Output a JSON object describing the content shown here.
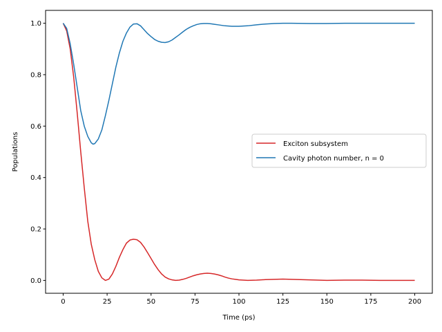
{
  "chart_data": {
    "type": "line",
    "title": "",
    "xlabel": "Time (ps)",
    "ylabel": "Populations",
    "xlim": [
      -10,
      210
    ],
    "ylim": [
      -0.05,
      1.05
    ],
    "xticks": [
      0,
      25,
      50,
      75,
      100,
      125,
      150,
      175,
      200
    ],
    "yticks": [
      0.0,
      0.2,
      0.4,
      0.6,
      0.8,
      1.0
    ],
    "xtick_labels": [
      "0",
      "25",
      "50",
      "75",
      "100",
      "125",
      "150",
      "175",
      "200"
    ],
    "ytick_labels": [
      "0.0",
      "0.2",
      "0.4",
      "0.6",
      "0.8",
      "1.0"
    ],
    "grid": false,
    "legend_position": "center-right",
    "series": [
      {
        "name": "Exciton subsystem",
        "color": "#d62728",
        "points": [
          [
            0,
            1.0
          ],
          [
            2,
            0.97
          ],
          [
            4,
            0.9
          ],
          [
            6,
            0.79
          ],
          [
            8,
            0.65
          ],
          [
            10,
            0.5
          ],
          [
            12,
            0.36
          ],
          [
            14,
            0.23
          ],
          [
            16,
            0.14
          ],
          [
            18,
            0.08
          ],
          [
            20,
            0.035
          ],
          [
            22,
            0.01
          ],
          [
            24,
            0.0
          ],
          [
            26,
            0.005
          ],
          [
            28,
            0.025
          ],
          [
            30,
            0.055
          ],
          [
            32,
            0.09
          ],
          [
            34,
            0.12
          ],
          [
            36,
            0.145
          ],
          [
            38,
            0.157
          ],
          [
            40,
            0.16
          ],
          [
            42,
            0.158
          ],
          [
            44,
            0.148
          ],
          [
            46,
            0.13
          ],
          [
            48,
            0.108
          ],
          [
            50,
            0.085
          ],
          [
            52,
            0.062
          ],
          [
            54,
            0.042
          ],
          [
            56,
            0.025
          ],
          [
            58,
            0.013
          ],
          [
            60,
            0.006
          ],
          [
            62,
            0.002
          ],
          [
            64,
            0.0
          ],
          [
            66,
            0.001
          ],
          [
            68,
            0.004
          ],
          [
            70,
            0.008
          ],
          [
            72,
            0.013
          ],
          [
            74,
            0.018
          ],
          [
            76,
            0.022
          ],
          [
            78,
            0.025
          ],
          [
            80,
            0.027
          ],
          [
            82,
            0.028
          ],
          [
            84,
            0.027
          ],
          [
            86,
            0.025
          ],
          [
            88,
            0.022
          ],
          [
            90,
            0.018
          ],
          [
            92,
            0.013
          ],
          [
            94,
            0.009
          ],
          [
            96,
            0.006
          ],
          [
            98,
            0.004
          ],
          [
            100,
            0.002
          ],
          [
            105,
            0.0
          ],
          [
            110,
            0.001
          ],
          [
            115,
            0.003
          ],
          [
            120,
            0.004
          ],
          [
            125,
            0.005
          ],
          [
            130,
            0.004
          ],
          [
            135,
            0.003
          ],
          [
            140,
            0.002
          ],
          [
            145,
            0.001
          ],
          [
            150,
            0.0
          ],
          [
            160,
            0.001
          ],
          [
            170,
            0.001
          ],
          [
            180,
            0.0
          ],
          [
            190,
            0.0
          ],
          [
            200,
            0.0
          ]
        ]
      },
      {
        "name": "Cavity photon number, n = 0",
        "color": "#1f77b4",
        "points": [
          [
            0,
            1.0
          ],
          [
            2,
            0.98
          ],
          [
            4,
            0.92
          ],
          [
            6,
            0.84
          ],
          [
            8,
            0.75
          ],
          [
            10,
            0.66
          ],
          [
            12,
            0.6
          ],
          [
            14,
            0.56
          ],
          [
            16,
            0.535
          ],
          [
            17,
            0.53
          ],
          [
            18,
            0.532
          ],
          [
            20,
            0.55
          ],
          [
            22,
            0.585
          ],
          [
            24,
            0.64
          ],
          [
            26,
            0.7
          ],
          [
            28,
            0.765
          ],
          [
            30,
            0.83
          ],
          [
            32,
            0.885
          ],
          [
            34,
            0.93
          ],
          [
            36,
            0.962
          ],
          [
            38,
            0.985
          ],
          [
            40,
            0.997
          ],
          [
            42,
            0.998
          ],
          [
            44,
            0.99
          ],
          [
            46,
            0.975
          ],
          [
            48,
            0.96
          ],
          [
            50,
            0.948
          ],
          [
            52,
            0.937
          ],
          [
            54,
            0.93
          ],
          [
            56,
            0.926
          ],
          [
            58,
            0.925
          ],
          [
            60,
            0.928
          ],
          [
            62,
            0.935
          ],
          [
            64,
            0.945
          ],
          [
            66,
            0.955
          ],
          [
            68,
            0.966
          ],
          [
            70,
            0.976
          ],
          [
            72,
            0.984
          ],
          [
            74,
            0.99
          ],
          [
            76,
            0.995
          ],
          [
            78,
            0.998
          ],
          [
            80,
            0.999
          ],
          [
            82,
            0.999
          ],
          [
            84,
            0.998
          ],
          [
            86,
            0.996
          ],
          [
            88,
            0.994
          ],
          [
            90,
            0.992
          ],
          [
            92,
            0.99
          ],
          [
            94,
            0.989
          ],
          [
            96,
            0.988
          ],
          [
            98,
            0.988
          ],
          [
            100,
            0.988
          ],
          [
            105,
            0.99
          ],
          [
            110,
            0.994
          ],
          [
            115,
            0.997
          ],
          [
            120,
            0.999
          ],
          [
            125,
            1.0
          ],
          [
            130,
            1.0
          ],
          [
            140,
            0.999
          ],
          [
            150,
            0.999
          ],
          [
            160,
            1.0
          ],
          [
            170,
            1.0
          ],
          [
            180,
            1.0
          ],
          [
            190,
            1.0
          ],
          [
            200,
            1.0
          ]
        ]
      }
    ]
  }
}
